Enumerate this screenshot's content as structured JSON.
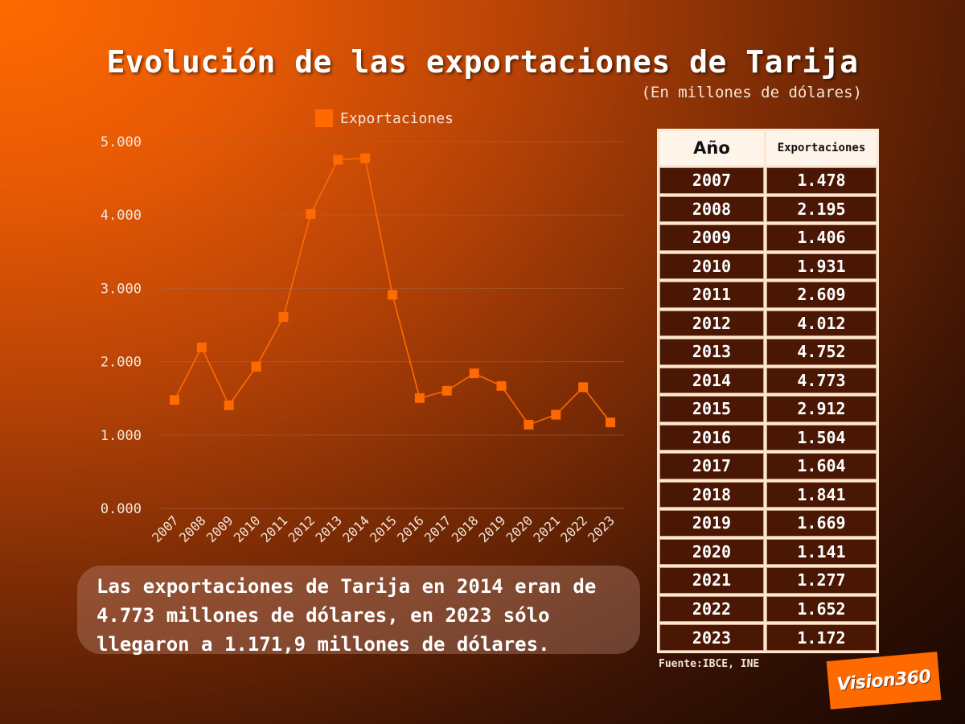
{
  "title": "Evolución de las exportaciones de Tarija",
  "subtitle": "(En millones de dólares)",
  "colors": {
    "accent": "#ff6a00",
    "line": "#ff6a00",
    "table_cell": "#4a1705",
    "table_header": "#fff4ea"
  },
  "chart_data": {
    "type": "line",
    "title": "Evolución de las exportaciones de Tarija",
    "subtitle": "(En millones de dólares)",
    "xlabel": "",
    "ylabel": "",
    "ylim": [
      0,
      5000
    ],
    "yticks": [
      "0.000",
      "1.000",
      "2.000",
      "3.000",
      "4.000",
      "5.000"
    ],
    "grid": true,
    "legend_position": "top",
    "categories": [
      "2007",
      "2008",
      "2009",
      "2010",
      "2011",
      "2012",
      "2013",
      "2014",
      "2015",
      "2016",
      "2017",
      "2018",
      "2019",
      "2020",
      "2021",
      "2022",
      "2023"
    ],
    "series": [
      {
        "name": "Exportaciones",
        "values": [
          1478,
          2195,
          1406,
          1931,
          2609,
          4012,
          4752,
          4773,
          2912,
          1504,
          1604,
          1841,
          1669,
          1141,
          1277,
          1652,
          1172
        ]
      }
    ]
  },
  "table": {
    "headers": [
      "Año",
      "Exportaciones"
    ],
    "rows": [
      [
        "2007",
        "1.478"
      ],
      [
        "2008",
        "2.195"
      ],
      [
        "2009",
        "1.406"
      ],
      [
        "2010",
        "1.931"
      ],
      [
        "2011",
        "2.609"
      ],
      [
        "2012",
        "4.012"
      ],
      [
        "2013",
        "4.752"
      ],
      [
        "2014",
        "4.773"
      ],
      [
        "2015",
        "2.912"
      ],
      [
        "2016",
        "1.504"
      ],
      [
        "2017",
        "1.604"
      ],
      [
        "2018",
        "1.841"
      ],
      [
        "2019",
        "1.669"
      ],
      [
        "2020",
        "1.141"
      ],
      [
        "2021",
        "1.277"
      ],
      [
        "2022",
        "1.652"
      ],
      [
        "2023",
        "1.172"
      ]
    ]
  },
  "note": {
    "line1": "Las exportaciones de Tarija en 2014 eran de",
    "line2": "4.773 millones de dólares, en 2023 sólo",
    "line3": "llegaron a 1.171,9 millones de dólares."
  },
  "source": "Fuente:IBCE, INE",
  "logo": {
    "text": "Vision360"
  }
}
